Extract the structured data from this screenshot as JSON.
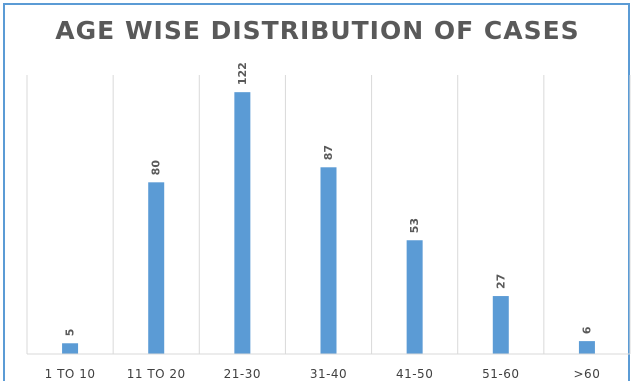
{
  "chart_data": {
    "type": "bar",
    "title": "AGE WISE DISTRIBUTION OF CASES",
    "categories": [
      "1 TO 10",
      "11 TO 20",
      "21-30",
      "31-40",
      "41-50",
      "51-60",
      ">60"
    ],
    "values": [
      5,
      80,
      122,
      87,
      53,
      27,
      6
    ],
    "data_labels": [
      "5",
      "80",
      "122",
      "87",
      "53",
      "27",
      "6"
    ],
    "ylim": [
      0,
      130
    ],
    "grid": "vertical category separators",
    "legend": "none",
    "bar_color": "#5b9bd5"
  }
}
